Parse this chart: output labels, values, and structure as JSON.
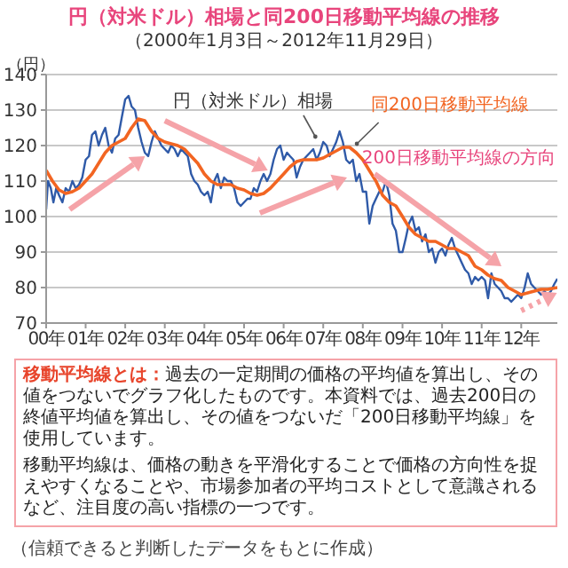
{
  "chart_data": {
    "type": "line",
    "title": "円（対米ドル）相場と同200日移動平均線の推移",
    "subtitle": "（2000年1月3日～2012年11月29日）",
    "ylabel": "（円）",
    "xlim": [
      "2000-01-03",
      "2012-11-29"
    ],
    "xticks": [
      {
        "value": "2000-01-03",
        "label": "00年"
      },
      {
        "value": "2001-01-01",
        "label": "01年"
      },
      {
        "value": "2002-01-01",
        "label": "02年"
      },
      {
        "value": "2003-01-01",
        "label": "03年"
      },
      {
        "value": "2004-01-01",
        "label": "04年"
      },
      {
        "value": "2005-01-01",
        "label": "05年"
      },
      {
        "value": "2006-01-01",
        "label": "06年"
      },
      {
        "value": "2007-01-01",
        "label": "07年"
      },
      {
        "value": "2008-01-01",
        "label": "08年"
      },
      {
        "value": "2009-01-01",
        "label": "09年"
      },
      {
        "value": "2010-01-01",
        "label": "10年"
      },
      {
        "value": "2011-01-01",
        "label": "11年"
      },
      {
        "value": "2012-01-01",
        "label": "12年"
      }
    ],
    "ylim": [
      70,
      140
    ],
    "yticks": [
      70,
      80,
      90,
      100,
      110,
      120,
      130,
      140
    ],
    "grid": "y",
    "marker": "none",
    "line_style": "solid",
    "series": [
      {
        "name": "円（対米ドル）相場",
        "color": "#2f5aa8",
        "x": [
          "2000-01-03",
          "2000-01-20",
          "2000-02-15",
          "2000-03-10",
          "2000-04-05",
          "2000-05-01",
          "2000-06-01",
          "2000-07-01",
          "2000-08-01",
          "2000-09-01",
          "2000-10-01",
          "2000-11-01",
          "2000-12-01",
          "2001-01-01",
          "2001-02-01",
          "2001-03-01",
          "2001-04-01",
          "2001-05-01",
          "2001-06-01",
          "2001-07-01",
          "2001-08-01",
          "2001-09-01",
          "2001-10-01",
          "2001-11-01",
          "2001-12-01",
          "2002-01-01",
          "2002-02-01",
          "2002-03-01",
          "2002-04-01",
          "2002-05-01",
          "2002-06-01",
          "2002-07-01",
          "2002-08-01",
          "2002-09-01",
          "2002-10-01",
          "2002-11-01",
          "2002-12-01",
          "2003-01-01",
          "2003-02-01",
          "2003-03-01",
          "2003-04-01",
          "2003-05-01",
          "2003-06-01",
          "2003-07-01",
          "2003-08-01",
          "2003-09-01",
          "2003-10-01",
          "2003-11-01",
          "2003-12-01",
          "2004-01-01",
          "2004-02-01",
          "2004-03-01",
          "2004-04-01",
          "2004-05-01",
          "2004-06-01",
          "2004-07-01",
          "2004-08-01",
          "2004-09-01",
          "2004-10-01",
          "2004-11-01",
          "2004-12-01",
          "2005-01-01",
          "2005-02-01",
          "2005-03-01",
          "2005-04-01",
          "2005-05-01",
          "2005-06-01",
          "2005-07-01",
          "2005-08-01",
          "2005-09-01",
          "2005-10-01",
          "2005-11-01",
          "2005-12-01",
          "2006-01-01",
          "2006-02-01",
          "2006-03-01",
          "2006-04-01",
          "2006-05-01",
          "2006-06-01",
          "2006-07-01",
          "2006-08-01",
          "2006-09-01",
          "2006-10-01",
          "2006-11-01",
          "2006-12-01",
          "2007-01-01",
          "2007-02-01",
          "2007-03-01",
          "2007-04-01",
          "2007-05-01",
          "2007-06-01",
          "2007-07-01",
          "2007-08-01",
          "2007-09-01",
          "2007-10-01",
          "2007-11-01",
          "2007-12-01",
          "2008-01-01",
          "2008-02-01",
          "2008-03-01",
          "2008-04-01",
          "2008-05-01",
          "2008-06-01",
          "2008-07-01",
          "2008-08-01",
          "2008-09-01",
          "2008-10-01",
          "2008-11-01",
          "2008-12-01",
          "2009-01-01",
          "2009-02-01",
          "2009-03-01",
          "2009-04-01",
          "2009-05-01",
          "2009-06-01",
          "2009-07-01",
          "2009-08-01",
          "2009-09-01",
          "2009-10-01",
          "2009-11-01",
          "2009-12-01",
          "2010-01-01",
          "2010-02-01",
          "2010-03-01",
          "2010-04-01",
          "2010-05-01",
          "2010-06-01",
          "2010-07-01",
          "2010-08-01",
          "2010-09-01",
          "2010-10-01",
          "2010-11-01",
          "2010-12-01",
          "2011-01-01",
          "2011-02-01",
          "2011-03-01",
          "2011-04-01",
          "2011-05-01",
          "2011-06-01",
          "2011-07-01",
          "2011-08-01",
          "2011-09-01",
          "2011-10-01",
          "2011-11-01",
          "2011-12-01",
          "2012-01-01",
          "2012-02-01",
          "2012-03-01",
          "2012-04-01",
          "2012-05-01",
          "2012-06-01",
          "2012-07-01",
          "2012-08-01",
          "2012-09-01",
          "2012-10-01",
          "2012-11-01",
          "2012-11-29"
        ],
        "values": [
          102,
          110,
          108,
          104,
          108,
          106,
          104,
          108,
          107,
          110,
          108,
          109,
          111,
          116,
          117,
          123,
          124,
          120,
          123,
          125,
          120,
          118,
          122,
          123,
          128,
          133,
          134,
          131,
          130,
          125,
          121,
          118,
          117,
          121,
          124,
          122,
          120,
          119,
          118,
          120,
          119,
          117,
          119,
          118,
          117,
          112,
          110,
          109,
          107,
          106,
          107,
          104,
          110,
          112,
          108,
          111,
          110,
          110,
          108,
          104,
          103,
          104,
          105,
          105,
          108,
          107,
          110,
          112,
          110,
          112,
          116,
          119,
          120,
          116,
          118,
          117,
          116,
          111,
          114,
          116,
          117,
          118,
          119,
          116,
          118,
          121,
          120,
          117,
          119,
          121,
          124,
          121,
          116,
          115,
          116,
          110,
          112,
          107,
          107,
          98,
          103,
          105,
          107,
          107,
          110,
          106,
          98,
          96,
          90,
          90,
          94,
          98,
          100,
          96,
          97,
          93,
          95,
          90,
          91,
          87,
          90,
          91,
          89,
          92,
          94,
          91,
          89,
          87,
          85,
          84,
          81,
          83,
          82,
          83,
          82,
          77,
          84,
          81,
          80,
          79,
          77,
          77,
          76,
          77,
          78,
          77,
          80,
          84,
          81,
          80,
          79,
          78,
          79,
          78,
          79,
          81,
          82.5
        ]
      },
      {
        "name": "同200日移動平均線",
        "color": "#f26522",
        "x": [
          "2000-01-03",
          "2000-03-01",
          "2000-05-01",
          "2000-07-01",
          "2000-09-01",
          "2000-11-01",
          "2001-01-01",
          "2001-03-01",
          "2001-05-01",
          "2001-07-01",
          "2001-09-01",
          "2001-11-01",
          "2002-01-01",
          "2002-03-01",
          "2002-05-01",
          "2002-07-01",
          "2002-09-01",
          "2002-11-01",
          "2003-01-01",
          "2003-03-01",
          "2003-05-01",
          "2003-07-01",
          "2003-09-01",
          "2003-11-01",
          "2004-01-01",
          "2004-03-01",
          "2004-05-01",
          "2004-07-01",
          "2004-09-01",
          "2004-11-01",
          "2005-01-01",
          "2005-03-01",
          "2005-05-01",
          "2005-07-01",
          "2005-09-01",
          "2005-11-01",
          "2006-01-01",
          "2006-03-01",
          "2006-05-01",
          "2006-07-01",
          "2006-09-01",
          "2006-11-01",
          "2007-01-01",
          "2007-03-01",
          "2007-05-01",
          "2007-07-01",
          "2007-09-01",
          "2007-11-01",
          "2008-01-01",
          "2008-03-01",
          "2008-05-01",
          "2008-07-01",
          "2008-09-01",
          "2008-11-01",
          "2009-01-01",
          "2009-03-01",
          "2009-05-01",
          "2009-07-01",
          "2009-09-01",
          "2009-11-01",
          "2010-01-01",
          "2010-03-01",
          "2010-05-01",
          "2010-07-01",
          "2010-09-01",
          "2010-11-01",
          "2011-01-01",
          "2011-03-01",
          "2011-05-01",
          "2011-07-01",
          "2011-09-01",
          "2011-11-01",
          "2012-01-01",
          "2012-03-01",
          "2012-05-01",
          "2012-07-01",
          "2012-09-01",
          "2012-11-29"
        ],
        "values": [
          113,
          110,
          107.5,
          106.5,
          107,
          108,
          110,
          112,
          115,
          118,
          120,
          121,
          122,
          125,
          127.5,
          127,
          124,
          122,
          121,
          120.5,
          120,
          119,
          117,
          115,
          112,
          110,
          109,
          109,
          109,
          108,
          107.5,
          106.5,
          106,
          106.5,
          108,
          110,
          112,
          114,
          115.5,
          116,
          116,
          116,
          116.5,
          117.5,
          118.5,
          119.5,
          119.5,
          118,
          116,
          113,
          110,
          106,
          104,
          103,
          100,
          97,
          95,
          94,
          93,
          93,
          92,
          91,
          91,
          90,
          89,
          86,
          85,
          83.5,
          82.5,
          82,
          80,
          79,
          78,
          78.5,
          79,
          79.5,
          79.5,
          80
        ]
      }
    ],
    "annotations": [
      "移動平均線とは：",
      "過去の一定期間の価格の平均値を算出し、その値をつないでグラフ化したものです。本資料では、過去200日の終値平均値を算出し、その値をつないだ「200日移動平均線」を使用しています。",
      "移動平均線は、価格の動きを平滑化することで価格の方向性を捉えやすくなることや、市場参加者の平均コストとして意識されるなど、注目度の高い指標の一つです。",
      "200日移動平均線の方向",
      "（信頼できると判断したデータをもとに作成）"
    ]
  }
}
